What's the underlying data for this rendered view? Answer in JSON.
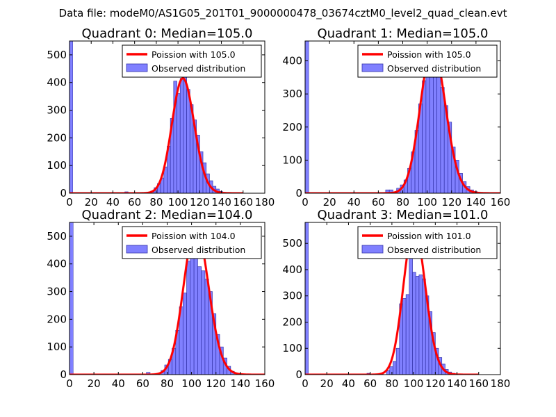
{
  "figure": {
    "suptitle": "Data file: modeM0/AS1G05_201T01_9000000478_03674cztM0_level2_quad_clean.evt"
  },
  "chart_data": [
    {
      "type": "bar",
      "title": "Quadrant 0: Median=105.0",
      "xlim": [
        0,
        180
      ],
      "ylim": [
        0,
        550
      ],
      "xticks": [
        0,
        20,
        40,
        60,
        80,
        100,
        120,
        140,
        160,
        180
      ],
      "yticks": [
        0,
        100,
        200,
        300,
        400,
        500
      ],
      "bin_width": 3,
      "median": 105.0,
      "zero_bin": 550,
      "legend": [
        "Poission with 105.0",
        "Observed distribution"
      ],
      "legend_position": "top-right",
      "series": [
        {
          "name": "Poission with 105.0",
          "kind": "line",
          "color": "#ff0000",
          "mean": 105.0,
          "peak": 415
        },
        {
          "name": "Observed distribution",
          "kind": "bar",
          "color": "#8080ff",
          "bins": [
            [
              51,
              5
            ],
            [
              75,
              8
            ],
            [
              78,
              20
            ],
            [
              81,
              35
            ],
            [
              84,
              55
            ],
            [
              87,
              95
            ],
            [
              90,
              170
            ],
            [
              93,
              270
            ],
            [
              96,
              405
            ],
            [
              99,
              360
            ],
            [
              102,
              415
            ],
            [
              105,
              475
            ],
            [
              108,
              375
            ],
            [
              111,
              320
            ],
            [
              114,
              265
            ],
            [
              117,
              210
            ],
            [
              120,
              150
            ],
            [
              123,
              110
            ],
            [
              126,
              70
            ],
            [
              129,
              45
            ],
            [
              132,
              25
            ],
            [
              135,
              15
            ],
            [
              138,
              7
            ]
          ]
        }
      ]
    },
    {
      "type": "bar",
      "title": "Quadrant 1: Median=105.0",
      "xlim": [
        0,
        160
      ],
      "ylim": [
        0,
        460
      ],
      "xticks": [
        0,
        20,
        40,
        60,
        80,
        100,
        120,
        140,
        160
      ],
      "yticks": [
        0,
        100,
        200,
        300,
        400
      ],
      "bin_width": 3,
      "median": 105.0,
      "zero_bin": 460,
      "legend": [
        "Poission with 105.0",
        "Observed distribution"
      ],
      "legend_position": "top-right",
      "series": [
        {
          "name": "Poission with 105.0",
          "kind": "line",
          "color": "#ff0000",
          "mean": 105.0,
          "peak": 440
        },
        {
          "name": "Observed distribution",
          "kind": "bar",
          "color": "#8080ff",
          "bins": [
            [
              66,
              10
            ],
            [
              69,
              10
            ],
            [
              75,
              15
            ],
            [
              78,
              25
            ],
            [
              81,
              40
            ],
            [
              84,
              75
            ],
            [
              87,
              125
            ],
            [
              90,
              190
            ],
            [
              93,
              270
            ],
            [
              96,
              340
            ],
            [
              99,
              390
            ],
            [
              102,
              400
            ],
            [
              105,
              440
            ],
            [
              108,
              375
            ],
            [
              111,
              320
            ],
            [
              114,
              265
            ],
            [
              117,
              215
            ],
            [
              120,
              140
            ],
            [
              123,
              100
            ],
            [
              126,
              60
            ],
            [
              129,
              35
            ],
            [
              132,
              20
            ],
            [
              135,
              10
            ],
            [
              138,
              5
            ]
          ]
        }
      ]
    },
    {
      "type": "bar",
      "title": "Quadrant 2: Median=104.0",
      "xlim": [
        0,
        160
      ],
      "ylim": [
        0,
        550
      ],
      "xticks": [
        0,
        20,
        40,
        60,
        80,
        100,
        120,
        140,
        160
      ],
      "yticks": [
        0,
        100,
        200,
        300,
        400,
        500
      ],
      "bin_width": 3,
      "median": 104.0,
      "zero_bin": 550,
      "legend": [
        "Poission with 104.0",
        "Observed distribution"
      ],
      "legend_position": "top-right",
      "series": [
        {
          "name": "Poission with 104.0",
          "kind": "line",
          "color": "#ff0000",
          "mean": 104.0,
          "peak": 530
        },
        {
          "name": "Observed distribution",
          "kind": "bar",
          "color": "#8080ff",
          "bins": [
            [
              63,
              8
            ],
            [
              75,
              15
            ],
            [
              78,
              35
            ],
            [
              81,
              55
            ],
            [
              84,
              95
            ],
            [
              87,
              160
            ],
            [
              90,
              245
            ],
            [
              93,
              295
            ],
            [
              96,
              410
            ],
            [
              99,
              450
            ],
            [
              102,
              450
            ],
            [
              105,
              390
            ],
            [
              108,
              375
            ],
            [
              111,
              345
            ],
            [
              114,
              300
            ],
            [
              117,
              220
            ],
            [
              120,
              145
            ],
            [
              123,
              100
            ],
            [
              126,
              60
            ],
            [
              129,
              30
            ],
            [
              132,
              12
            ]
          ]
        }
      ]
    },
    {
      "type": "bar",
      "title": "Quadrant 3: Median=101.0",
      "xlim": [
        0,
        180
      ],
      "ylim": [
        0,
        580
      ],
      "xticks": [
        0,
        20,
        40,
        60,
        80,
        100,
        120,
        140,
        160,
        180
      ],
      "yticks": [
        0,
        100,
        200,
        300,
        400,
        500
      ],
      "bin_width": 3,
      "median": 101.0,
      "zero_bin": 580,
      "legend": [
        "Poission with 101.0",
        "Observed distribution"
      ],
      "legend_position": "top-right",
      "series": [
        {
          "name": "Poission with 101.0",
          "kind": "line",
          "color": "#ff0000",
          "mean": 101.0,
          "peak": 560
        },
        {
          "name": "Observed distribution",
          "kind": "bar",
          "color": "#8080ff",
          "bins": [
            [
              57,
              5
            ],
            [
              69,
              5
            ],
            [
              75,
              15
            ],
            [
              78,
              30
            ],
            [
              81,
              50
            ],
            [
              84,
              100
            ],
            [
              87,
              270
            ],
            [
              90,
              290
            ],
            [
              93,
              305
            ],
            [
              96,
              520
            ],
            [
              99,
              390
            ],
            [
              102,
              375
            ],
            [
              105,
              380
            ],
            [
              108,
              365
            ],
            [
              111,
              300
            ],
            [
              114,
              240
            ],
            [
              117,
              160
            ],
            [
              120,
              100
            ],
            [
              123,
              65
            ],
            [
              126,
              40
            ],
            [
              129,
              20
            ],
            [
              132,
              10
            ],
            [
              135,
              5
            ]
          ]
        }
      ]
    }
  ]
}
